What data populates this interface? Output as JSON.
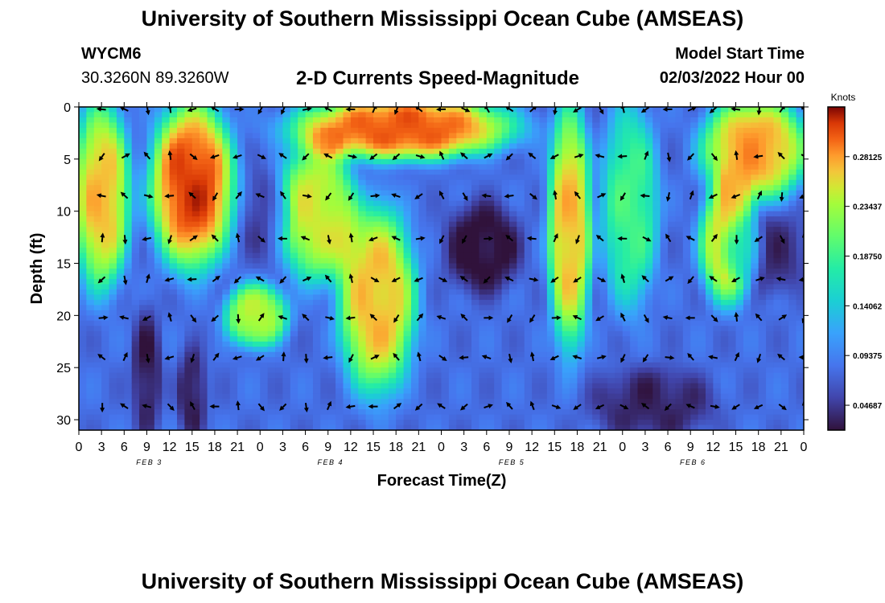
{
  "header": {
    "title": "University of Southern Mississippi Ocean Cube (AMSEAS)",
    "station_id": "WYCM6",
    "station_coords": "30.3260N  89.3260W",
    "chart_title": "2-D Currents Speed-Magnitude",
    "model_start_label": "Model Start Time",
    "model_start_value": "02/03/2022 Hour 00"
  },
  "footer": {
    "title": "University of Southern Mississippi Ocean Cube (AMSEAS)"
  },
  "chart_data": {
    "type": "heatmap",
    "title": "2-D Currents Speed-Magnitude",
    "xlabel": "Forecast Time(Z)",
    "ylabel": "Depth (ft)",
    "x_ticks": [
      "0",
      "3",
      "6",
      "9",
      "12",
      "15",
      "18",
      "21",
      "0",
      "3",
      "6",
      "9",
      "12",
      "15",
      "18",
      "21",
      "0",
      "3",
      "6",
      "9",
      "12",
      "15",
      "18",
      "21",
      "0",
      "3",
      "6",
      "9",
      "12",
      "15",
      "18",
      "21",
      "0"
    ],
    "x_tick_hours": [
      0,
      3,
      6,
      9,
      12,
      15,
      18,
      21,
      24,
      27,
      30,
      33,
      36,
      39,
      42,
      45,
      48,
      51,
      54,
      57,
      60,
      63,
      66,
      69,
      72,
      75,
      78,
      81,
      84,
      87,
      90,
      93,
      96
    ],
    "date_labels": [
      {
        "label": "FEB 3",
        "hour": 9
      },
      {
        "label": "FEB 4",
        "hour": 33
      },
      {
        "label": "FEB 5",
        "hour": 57
      },
      {
        "label": "FEB 6",
        "hour": 81
      }
    ],
    "xlim": [
      0,
      96
    ],
    "y_ticks": [
      0,
      5,
      10,
      15,
      20,
      25,
      30
    ],
    "ylim": [
      0,
      31
    ],
    "colorbar": {
      "units": "Knots",
      "min": 0.0234,
      "max": 0.3281,
      "tick_values": [
        0.04687,
        0.09375,
        0.14062,
        0.1875,
        0.23437,
        0.28125
      ],
      "tick_labels": [
        "0.04687",
        "0.09375",
        "0.14062",
        "0.18750",
        "0.23437",
        "0.28125"
      ]
    },
    "arrow_depths_ft": [
      0,
      4.5,
      8.3,
      12.4,
      16.3,
      20,
      23.8,
      28.5
    ],
    "arrow_hours": [
      3,
      6,
      9,
      12,
      15,
      18,
      21,
      24,
      27,
      30,
      33,
      36,
      39,
      42,
      45,
      48,
      51,
      54,
      57,
      60,
      63,
      66,
      69,
      72,
      75,
      78,
      81,
      84,
      87,
      90,
      93,
      96
    ],
    "features": [
      {
        "t0": 0,
        "t1": 6,
        "d0": 0,
        "d1": 17,
        "value": 0.27
      },
      {
        "t0": 10,
        "t1": 20,
        "d0": 0,
        "d1": 15,
        "value": 0.31
      },
      {
        "t0": 28,
        "t1": 58,
        "d0": 0,
        "d1": 4,
        "value": 0.3
      },
      {
        "t0": 27,
        "t1": 36,
        "d0": 4,
        "d1": 16,
        "value": 0.25
      },
      {
        "t0": 35,
        "t1": 44,
        "d0": 10,
        "d1": 27,
        "value": 0.27
      },
      {
        "t0": 20,
        "t1": 27,
        "d0": 18,
        "d1": 22,
        "value": 0.24
      },
      {
        "t0": 63,
        "t1": 67,
        "d0": 0,
        "d1": 23,
        "value": 0.27
      },
      {
        "t0": 70,
        "t1": 76,
        "d0": 0,
        "d1": 19,
        "value": 0.19
      },
      {
        "t0": 83,
        "t1": 96,
        "d0": 0,
        "d1": 8,
        "value": 0.28
      },
      {
        "t0": 83,
        "t1": 89,
        "d0": 8,
        "d1": 18,
        "value": 0.26
      },
      {
        "t0": 49,
        "t1": 58,
        "d0": 10,
        "d1": 17,
        "value": 0.02
      },
      {
        "t0": 22,
        "t1": 27,
        "d0": 7,
        "d1": 14,
        "value": 0.05
      },
      {
        "t0": 8,
        "t1": 10,
        "d0": 20,
        "d1": 31,
        "value": 0.03
      },
      {
        "t0": 14,
        "t1": 16,
        "d0": 24,
        "d1": 31,
        "value": 0.03
      },
      {
        "t0": 68,
        "t1": 84,
        "d0": 26,
        "d1": 31,
        "value": 0.035
      },
      {
        "t0": 87,
        "t1": 96,
        "d0": 11,
        "d1": 17,
        "value": 0.04
      }
    ],
    "background_value": 0.08
  }
}
